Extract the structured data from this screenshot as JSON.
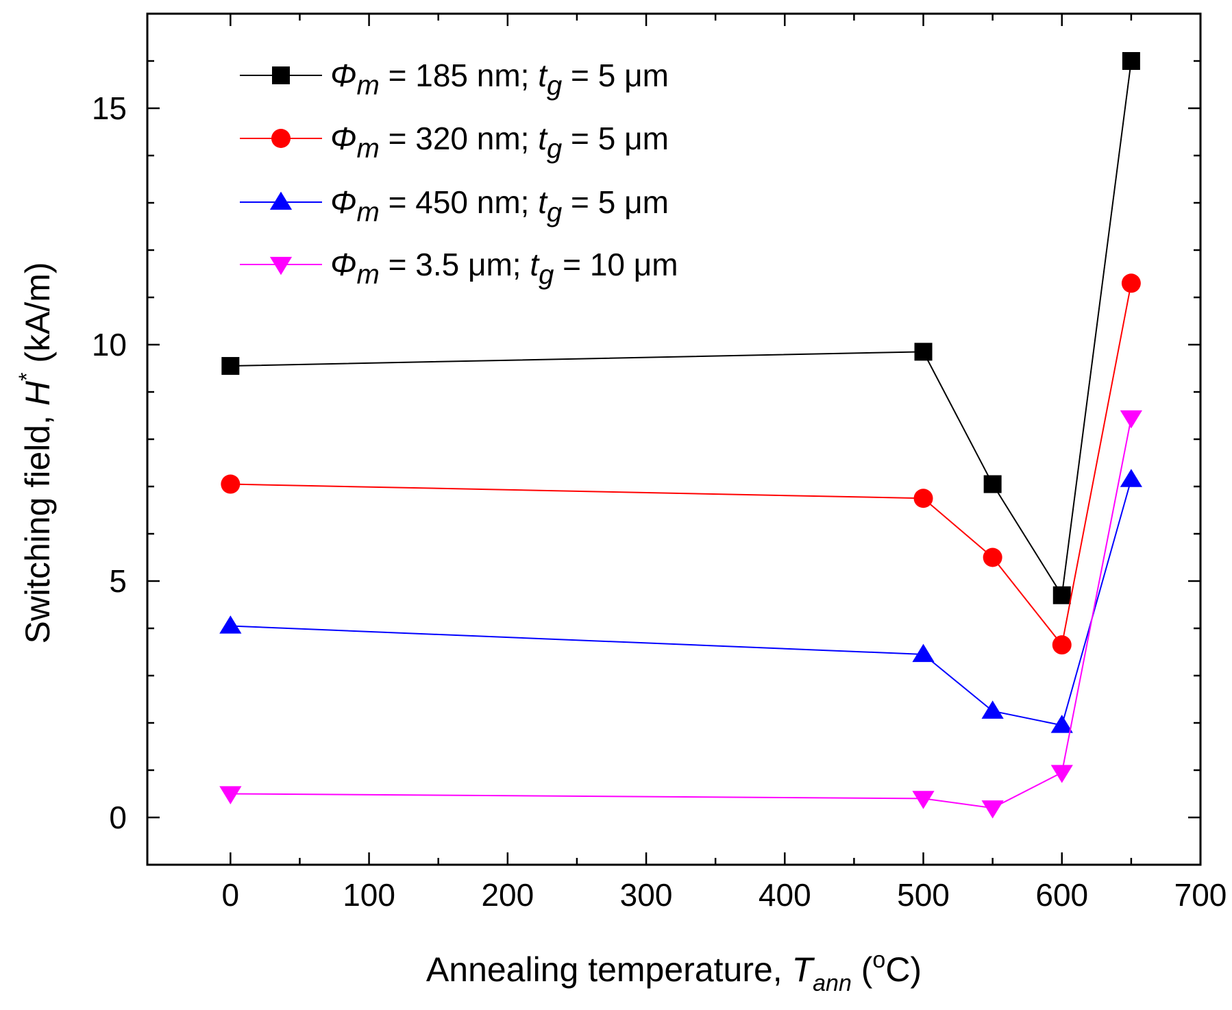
{
  "chart_data": {
    "type": "line",
    "title": "",
    "x": [
      0,
      500,
      550,
      600,
      650
    ],
    "xlim": [
      -60,
      700
    ],
    "ylim": [
      -1,
      17
    ],
    "xticks": [
      0,
      100,
      200,
      300,
      400,
      500,
      600,
      700
    ],
    "yticks": [
      0,
      5,
      10,
      15
    ],
    "xlabel": {
      "main": "Annealing temperature, ",
      "var": "T",
      "sub": "ann",
      "unit_open": " (",
      "unit_sup": "o",
      "unit_close": "C)"
    },
    "ylabel": {
      "main": "Switching field, ",
      "var": "H",
      "sup": "*",
      "unit": " (kA/m)"
    },
    "legend_position": "top-left",
    "series": [
      {
        "name": "Φm = 185 nm; tg = 5 μm",
        "label": {
          "phi": "Φ",
          "phi_sub": "m",
          "mid": " = 185 nm; ",
          "t": "t",
          "t_sub": "g",
          "end": " = 5 μm"
        },
        "color": "#000000",
        "marker": "square",
        "values": [
          9.55,
          9.85,
          7.05,
          4.7,
          16.0
        ]
      },
      {
        "name": "Φm = 320 nm; tg = 5 μm",
        "label": {
          "phi": "Φ",
          "phi_sub": "m",
          "mid": " = 320 nm; ",
          "t": "t",
          "t_sub": "g",
          "end": " = 5 μm"
        },
        "color": "#ff0000",
        "marker": "circle",
        "values": [
          7.05,
          6.75,
          5.5,
          3.65,
          11.3
        ]
      },
      {
        "name": "Φm = 450 nm; tg = 5 μm",
        "label": {
          "phi": "Φ",
          "phi_sub": "m",
          "mid": " = 450 nm; ",
          "t": "t",
          "t_sub": "g",
          "end": " = 5 μm"
        },
        "color": "#0000ff",
        "marker": "triangle-up",
        "values": [
          4.05,
          3.45,
          2.25,
          1.95,
          7.15
        ]
      },
      {
        "name": "Φm = 3.5 μm; tg = 10 μm",
        "label": {
          "phi": "Φ",
          "phi_sub": "m",
          "mid": " = 3.5 μm; ",
          "t": "t",
          "t_sub": "g",
          "end": " = 10 μm"
        },
        "color": "#ff00ff",
        "marker": "triangle-down",
        "values": [
          0.5,
          0.4,
          0.2,
          0.95,
          8.45
        ]
      }
    ]
  }
}
